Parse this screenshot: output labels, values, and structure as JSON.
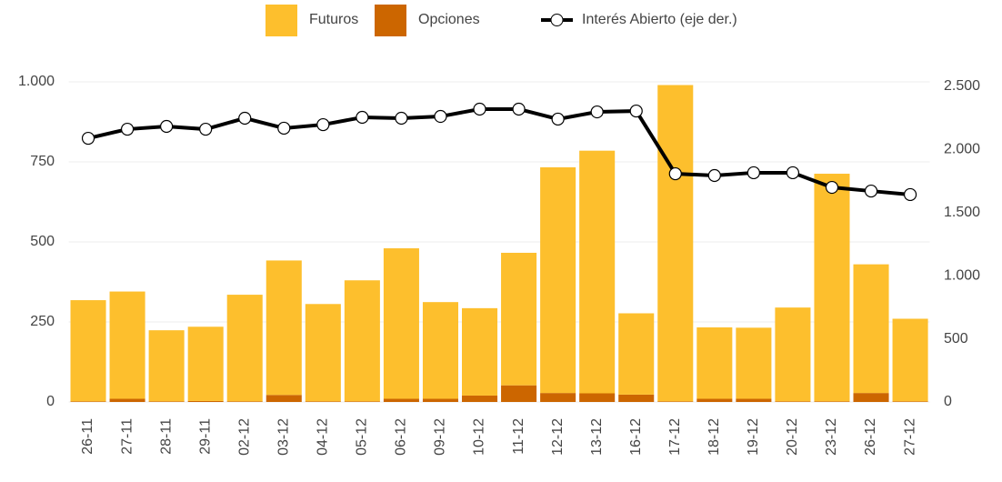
{
  "chart_data": {
    "type": "bar",
    "categories": [
      "26-11",
      "27-11",
      "28-11",
      "29-11",
      "02-12",
      "03-12",
      "04-12",
      "05-12",
      "06-12",
      "09-12",
      "10-12",
      "11-12",
      "12-12",
      "13-12",
      "16-12",
      "17-12",
      "18-12",
      "19-12",
      "20-12",
      "23-12",
      "26-12",
      "27-12"
    ],
    "series": [
      {
        "name": "Opciones",
        "color": "#cc6600",
        "type": "bar",
        "values": [
          2,
          10,
          2,
          3,
          2,
          22,
          2,
          2,
          10,
          10,
          20,
          52,
          28,
          27,
          23,
          2,
          10,
          10,
          2,
          2,
          28,
          2
        ]
      },
      {
        "name": "Futuros",
        "color": "#fdbf2d",
        "type": "bar",
        "values": [
          316,
          335,
          222,
          232,
          333,
          420,
          304,
          378,
          470,
          302,
          273,
          414,
          705,
          758,
          254,
          988,
          223,
          222,
          293,
          711,
          402,
          258
        ]
      },
      {
        "name": "Interés Abierto (eje der.)",
        "color": "#000000",
        "type": "line",
        "axis": "y2",
        "values": [
          2089,
          2161,
          2183,
          2161,
          2248,
          2169,
          2197,
          2255,
          2248,
          2262,
          2320,
          2320,
          2241,
          2298,
          2305,
          1808,
          1794,
          1816,
          1816,
          1700,
          1671,
          1643
        ]
      }
    ],
    "legend_order": [
      "Futuros",
      "Opciones",
      "Interés Abierto (eje der.)"
    ],
    "stacked": true,
    "ylim": [
      0,
      1000
    ],
    "yticks": [
      0,
      250,
      500,
      750,
      {
        "value": 1000,
        "label": "1.000"
      }
    ],
    "y2lim": [
      0,
      2500
    ],
    "y2ticks": [
      0,
      500,
      {
        "value": 1000,
        "label": "1.000"
      },
      {
        "value": 1500,
        "label": "1.500"
      },
      {
        "value": 2000,
        "label": "2.000"
      },
      {
        "value": 2500,
        "label": "2.500"
      }
    ],
    "grid": true,
    "legend": "top"
  }
}
